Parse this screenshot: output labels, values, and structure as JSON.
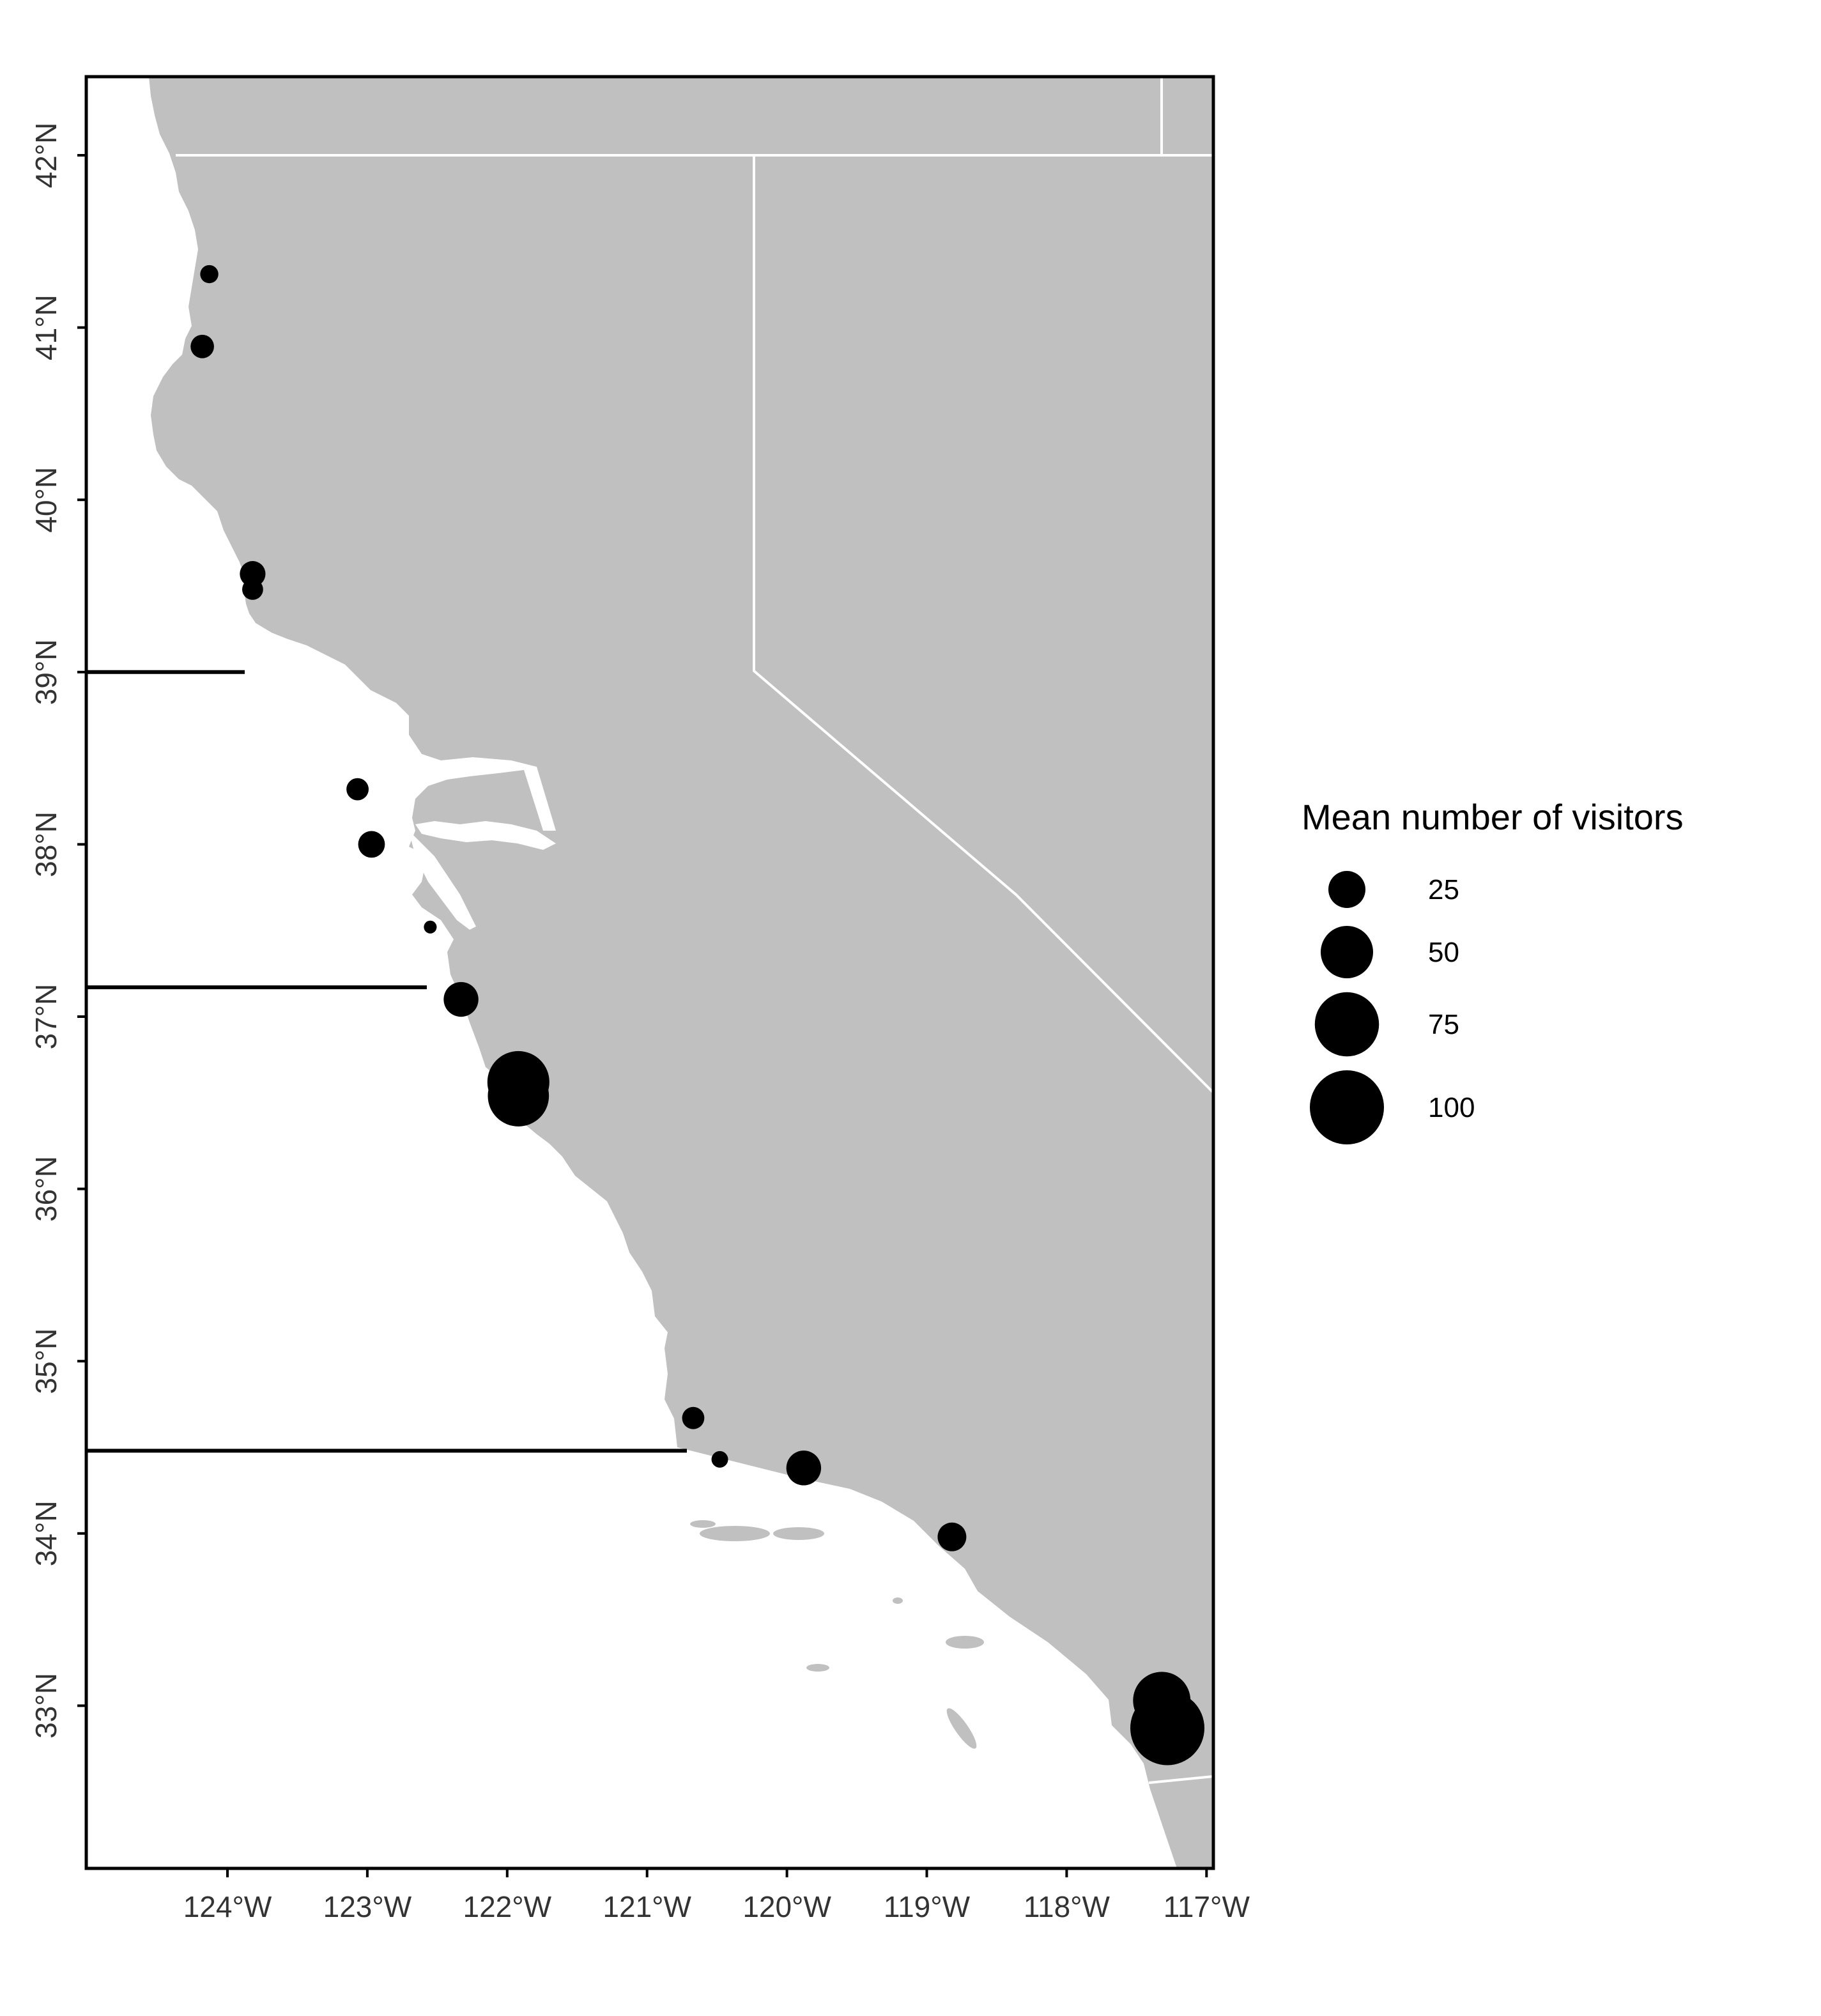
{
  "map": {
    "x_ticks": [
      "124°W",
      "123°W",
      "122°W",
      "121°W",
      "120°W",
      "119°W",
      "118°W",
      "117°W"
    ],
    "y_ticks": [
      "42°N",
      "41°N",
      "40°N",
      "39°N",
      "38°N",
      "37°N",
      "36°N",
      "35°N",
      "34°N",
      "33°N"
    ]
  },
  "legend": {
    "title": "Mean number of visitors",
    "items": [
      {
        "label": "25",
        "value": 25
      },
      {
        "label": "50",
        "value": 50
      },
      {
        "label": "75",
        "value": 75
      },
      {
        "label": "100",
        "value": 100
      }
    ]
  },
  "colors": {
    "land": "#c0c0c0",
    "water": "#ffffff",
    "point": "#000000",
    "state_border": "#ffffff",
    "axis": "#000000"
  },
  "chart_data": {
    "type": "scatter",
    "projection": "lon/lat",
    "xlim": [
      -124.85,
      -116.6
    ],
    "ylim": [
      32.2,
      42.4
    ],
    "x_unit": "longitude (°W negative)",
    "y_unit": "latitude (°N)",
    "size_variable": "Mean number of visitors",
    "region_lines_lat": [
      39.0,
      37.17,
      34.48
    ],
    "points": [
      {
        "lon": -124.13,
        "lat": 41.31,
        "visitors": 6
      },
      {
        "lon": -124.18,
        "lat": 40.89,
        "visitors": 10
      },
      {
        "lon": -123.82,
        "lat": 39.57,
        "visitors": 12
      },
      {
        "lon": -123.82,
        "lat": 39.48,
        "visitors": 8
      },
      {
        "lon": -123.07,
        "lat": 38.32,
        "visitors": 9
      },
      {
        "lon": -122.97,
        "lat": 38.0,
        "visitors": 13
      },
      {
        "lon": -122.55,
        "lat": 37.52,
        "visitors": 3
      },
      {
        "lon": -122.33,
        "lat": 37.1,
        "visitors": 22
      },
      {
        "lon": -121.92,
        "lat": 36.62,
        "visitors": 70
      },
      {
        "lon": -121.92,
        "lat": 36.54,
        "visitors": 68
      },
      {
        "lon": -120.67,
        "lat": 34.67,
        "visitors": 9
      },
      {
        "lon": -120.48,
        "lat": 34.43,
        "visitors": 5
      },
      {
        "lon": -119.88,
        "lat": 34.38,
        "visitors": 22
      },
      {
        "lon": -118.82,
        "lat": 33.98,
        "visitors": 15
      },
      {
        "lon": -117.32,
        "lat": 33.03,
        "visitors": 60
      },
      {
        "lon": -117.28,
        "lat": 32.87,
        "visitors": 100
      }
    ]
  }
}
